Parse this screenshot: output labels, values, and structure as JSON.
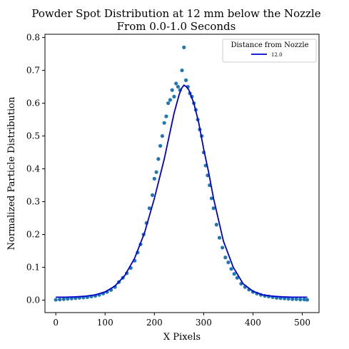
{
  "chart_data": {
    "type": "scatter",
    "title_lines": [
      "Powder Spot Distribution at 12 mm below the Nozzle",
      "From 0.0-1.0 Seconds"
    ],
    "xlabel": "X Pixels",
    "ylabel": "Normalized Particle Distribution",
    "xlim": [
      -22,
      534
    ],
    "ylim": [
      -0.038,
      0.81
    ],
    "xticks": [
      0,
      100,
      200,
      300,
      400,
      500
    ],
    "yticks": [
      0.0,
      0.1,
      0.2,
      0.3,
      0.4,
      0.5,
      0.6,
      0.7,
      0.8
    ],
    "grid": false,
    "legend": {
      "title": "Distance from Nozzle",
      "placement": "top-right",
      "entries": [
        {
          "label": "12.0",
          "color": "#0000cd"
        }
      ]
    },
    "series": [
      {
        "kind": "scatter",
        "color": "#1f77b4",
        "x": [
          0,
          8,
          16,
          24,
          32,
          40,
          48,
          56,
          64,
          72,
          80,
          88,
          96,
          104,
          112,
          120,
          128,
          136,
          144,
          152,
          160,
          166,
          172,
          178,
          184,
          190,
          196,
          200,
          204,
          208,
          212,
          216,
          220,
          224,
          228,
          232,
          236,
          240,
          244,
          248,
          252,
          256,
          260,
          264,
          268,
          272,
          276,
          280,
          284,
          288,
          292,
          296,
          300,
          304,
          308,
          312,
          316,
          320,
          326,
          332,
          338,
          344,
          350,
          356,
          362,
          368,
          376,
          384,
          392,
          400,
          408,
          416,
          424,
          432,
          440,
          448,
          456,
          464,
          472,
          480,
          488,
          496,
          504,
          510
        ],
        "y": [
          0.001,
          0.002,
          0.003,
          0.004,
          0.005,
          0.006,
          0.007,
          0.008,
          0.009,
          0.011,
          0.013,
          0.016,
          0.02,
          0.025,
          0.031,
          0.04,
          0.055,
          0.068,
          0.082,
          0.098,
          0.12,
          0.145,
          0.17,
          0.2,
          0.235,
          0.28,
          0.32,
          0.37,
          0.39,
          0.43,
          0.47,
          0.5,
          0.54,
          0.56,
          0.6,
          0.61,
          0.64,
          0.62,
          0.66,
          0.65,
          0.64,
          0.7,
          0.77,
          0.67,
          0.65,
          0.63,
          0.62,
          0.6,
          0.58,
          0.55,
          0.52,
          0.5,
          0.45,
          0.41,
          0.38,
          0.35,
          0.31,
          0.28,
          0.23,
          0.19,
          0.16,
          0.13,
          0.115,
          0.095,
          0.08,
          0.068,
          0.05,
          0.04,
          0.032,
          0.025,
          0.02,
          0.016,
          0.013,
          0.011,
          0.009,
          0.007,
          0.006,
          0.005,
          0.004,
          0.003,
          0.003,
          0.002,
          0.002,
          0.001
        ]
      },
      {
        "kind": "line",
        "name": "12.0",
        "color": "#0000cd",
        "x": [
          0,
          20,
          40,
          60,
          80,
          100,
          120,
          140,
          160,
          180,
          200,
          210,
          220,
          230,
          240,
          250,
          255,
          260,
          265,
          270,
          280,
          290,
          300,
          310,
          320,
          340,
          360,
          380,
          400,
          420,
          440,
          460,
          480,
          500,
          510
        ],
        "y": [
          0.009,
          0.009,
          0.01,
          0.012,
          0.016,
          0.025,
          0.043,
          0.075,
          0.128,
          0.205,
          0.31,
          0.37,
          0.43,
          0.5,
          0.57,
          0.625,
          0.645,
          0.655,
          0.65,
          0.64,
          0.6,
          0.54,
          0.46,
          0.39,
          0.31,
          0.18,
          0.1,
          0.05,
          0.027,
          0.016,
          0.012,
          0.01,
          0.009,
          0.009,
          0.009
        ]
      }
    ]
  }
}
